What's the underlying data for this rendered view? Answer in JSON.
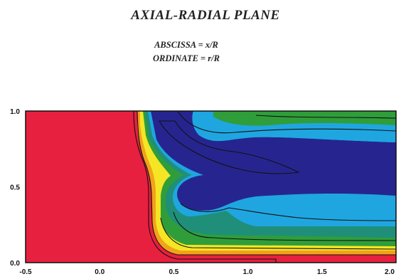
{
  "chart_data": {
    "type": "heatmap",
    "title": "AXIAL-RADIAL PLANE",
    "subtitle_lines": [
      "ABSCISSA = x/R",
      "ORDINATE = r/R"
    ],
    "x_ticks": [
      "-0.5",
      "0.0",
      "0.5",
      "1.0",
      "1.5",
      "2.0"
    ],
    "y_ticks": [
      "0.0",
      "0.5",
      "1.0"
    ],
    "xlim": [
      -0.5,
      2.0
    ],
    "ylim": [
      0.0,
      1.0
    ],
    "grid": false,
    "legend": "none",
    "colors": {
      "background_region": "#e8203f",
      "band_orange": "#f2a21a",
      "band_yellow": "#f4e625",
      "band_green": "#2f9e3a",
      "band_teal": "#1f8f7a",
      "band_light_blue": "#1fa6e0",
      "core_dark_blue": "#26258f",
      "contour_line": "#111111"
    }
  }
}
